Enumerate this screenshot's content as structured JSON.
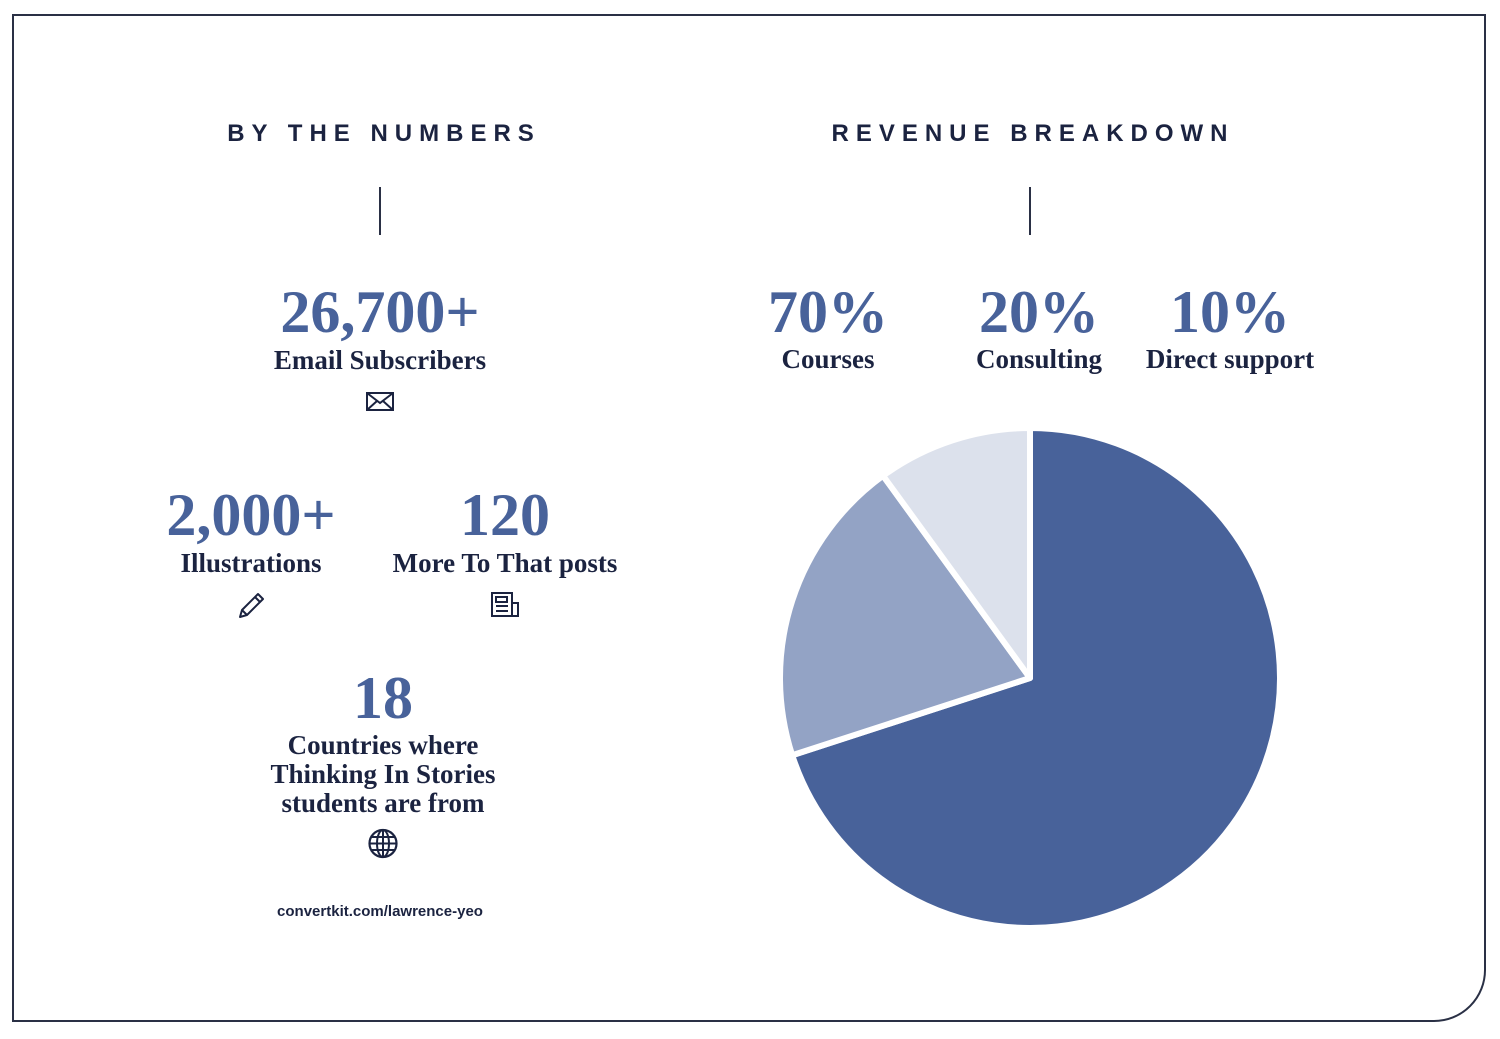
{
  "left": {
    "heading": "BY THE NUMBERS",
    "stats": [
      {
        "value": "26,700+",
        "label": "Email Subscribers",
        "icon": "envelope-icon"
      },
      {
        "value": "2,000+",
        "label": "Illustrations",
        "icon": "pencil-icon"
      },
      {
        "value": "120",
        "label": "More To That posts",
        "icon": "newspaper-icon"
      },
      {
        "value": "18",
        "label_lines": [
          "Countries where",
          "Thinking In Stories",
          "students are from"
        ],
        "icon": "globe-icon"
      }
    ],
    "url": "convertkit.com/lawrence-yeo"
  },
  "right": {
    "heading": "REVENUE BREAKDOWN",
    "items": [
      {
        "value": "70%",
        "label": "Courses"
      },
      {
        "value": "20%",
        "label": "Consulting"
      },
      {
        "value": "10%",
        "label": "Direct support"
      }
    ]
  },
  "chart_data": {
    "type": "pie",
    "title": "REVENUE BREAKDOWN",
    "categories": [
      "Courses",
      "Consulting",
      "Direct support"
    ],
    "values": [
      70,
      20,
      10
    ],
    "colors": [
      "#48629a",
      "#93a3c5",
      "#dce1ec"
    ],
    "start": "top",
    "direction": "clockwise"
  }
}
